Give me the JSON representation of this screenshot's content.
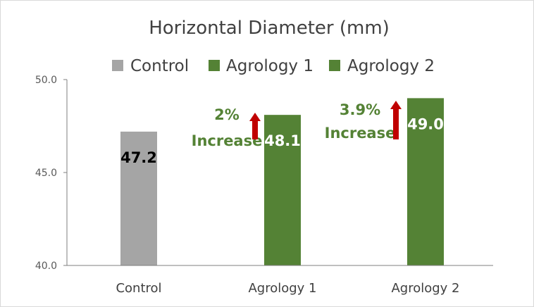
{
  "chart_data": {
    "type": "bar",
    "title": "Horizontal Diameter (mm)",
    "categories": [
      "Control",
      "Agrology 1",
      "Agrology 2"
    ],
    "values": [
      47.2,
      48.1,
      49.0
    ],
    "data_labels": [
      "47.2",
      "48.1",
      "49.0"
    ],
    "bar_colors": [
      "#a5a5a5",
      "#548235",
      "#548235"
    ],
    "data_label_colors": [
      "#000000",
      "#ffffff",
      "#ffffff"
    ],
    "ylim": [
      40,
      50
    ],
    "yticks": [
      40,
      45,
      50
    ],
    "ytick_labels": [
      "40.0",
      "45.0",
      "50.0"
    ],
    "grid": false,
    "legend": {
      "placement": "top",
      "entries": [
        {
          "name": "Control",
          "color": "#a5a5a5"
        },
        {
          "name": "Agrology 1",
          "color": "#548235"
        },
        {
          "name": "Agrology 2",
          "color": "#548235"
        }
      ]
    },
    "annotations": [
      {
        "category": "Agrology 1",
        "line1": "2%",
        "line2": "Increase",
        "color": "#548235",
        "arrow": "up",
        "arrow_color": "#c00000"
      },
      {
        "category": "Agrology 2",
        "line1": "3.9%",
        "line2": "Increase",
        "color": "#548235",
        "arrow": "up",
        "arrow_color": "#c00000"
      }
    ],
    "axis_color": "#7f7f7f",
    "border_color": "#d9d9d9"
  }
}
